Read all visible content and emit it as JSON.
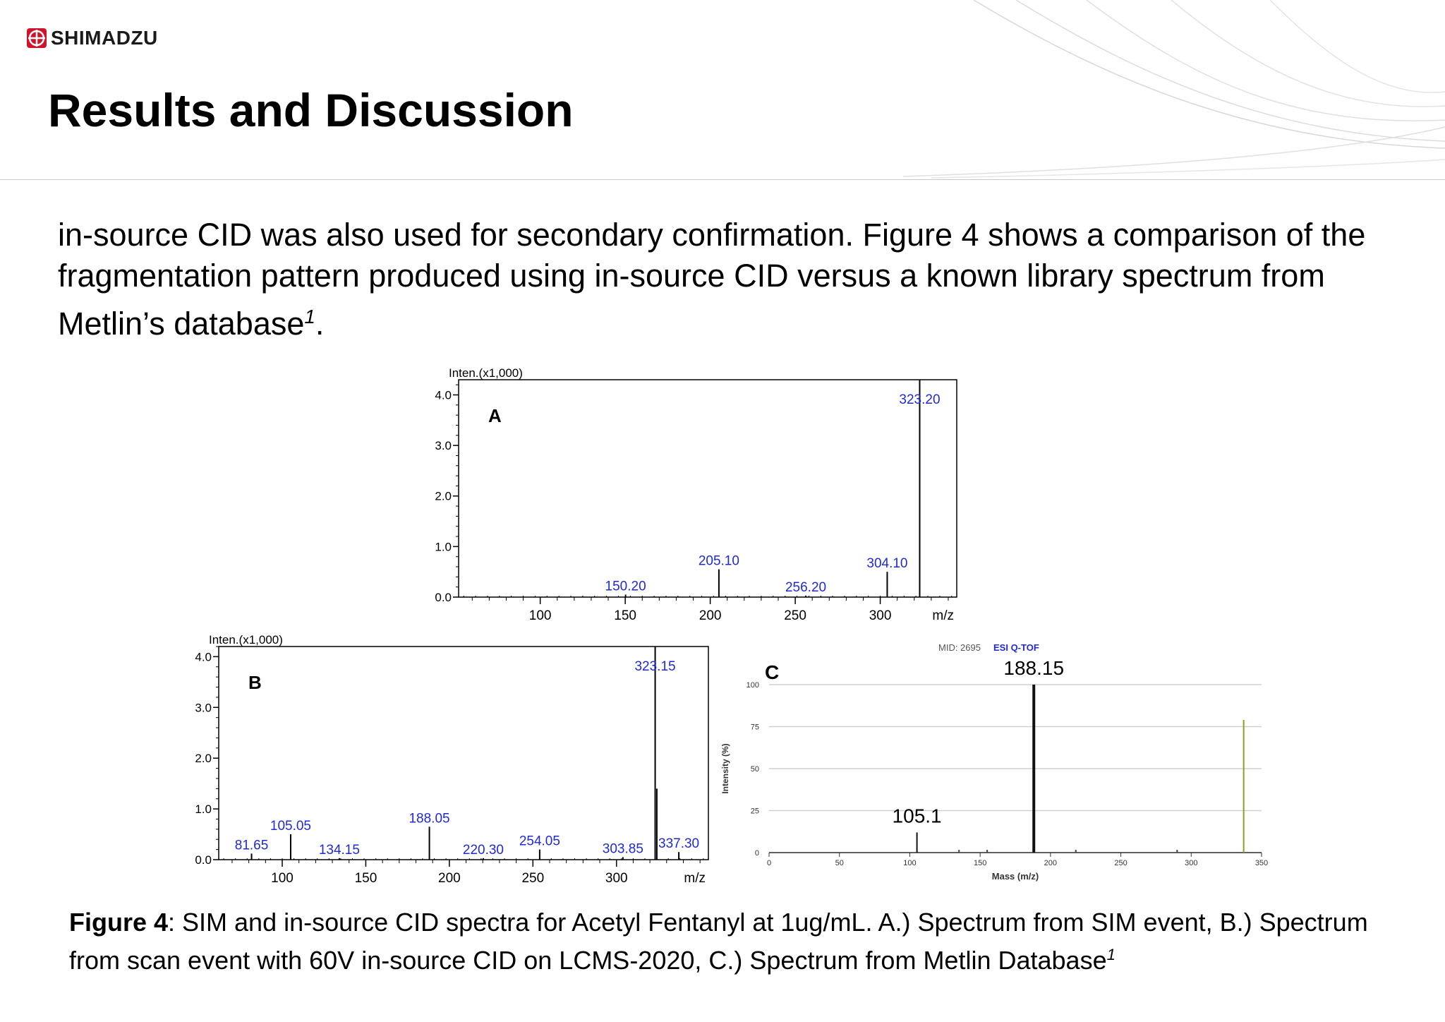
{
  "header": {
    "brand": "SHIMADZU",
    "title": "Results and Discussion"
  },
  "body": {
    "paragraph": "in-source CID was also used for secondary confirmation. Figure 4 shows a comparison of the fragmentation pattern produced using in-source CID versus a known library spectrum from Metlin’s database",
    "footnote_mark": "1",
    "end": "."
  },
  "caption": {
    "label": "Figure 4",
    "text": ": SIM and in-source CID spectra for Acetyl Fentanyl at 1ug/mL.  A.) Spectrum from SIM event, B.) Spectrum from scan event with 60V in-source CID on LCMS-2020, C.) Spectrum from Metlin Database",
    "footnote_mark": "1"
  },
  "colors": {
    "brand_red": "#d0122a",
    "peak_label": "#1f2ad6",
    "axis": "#000000",
    "metlin_peak": "#8aa020"
  },
  "chart_data": [
    {
      "type": "bar",
      "panel": "A",
      "ylabel": "Inten.(x1,000)",
      "xlabel": "m/z",
      "xlim": [
        52,
        345
      ],
      "ylim": [
        0,
        4.3
      ],
      "xticks": [
        100,
        150,
        200,
        250,
        300
      ],
      "yticks": [
        0,
        1,
        2,
        3,
        4
      ],
      "ytick_labels": [
        "0.0",
        "1.0",
        "2.0",
        "3.0",
        "4.0"
      ],
      "peaks": [
        {
          "x": 150.2,
          "y": 0.05,
          "label": "150.20"
        },
        {
          "x": 205.1,
          "y": 0.55,
          "label": "205.10"
        },
        {
          "x": 256.2,
          "y": 0.03,
          "label": "256.20"
        },
        {
          "x": 304.1,
          "y": 0.5,
          "label": "304.10"
        },
        {
          "x": 323.2,
          "y": 4.3,
          "label": "323.20"
        }
      ]
    },
    {
      "type": "bar",
      "panel": "B",
      "ylabel": "Inten.(x1,000)",
      "xlabel": "m/z",
      "xlim": [
        62,
        355
      ],
      "ylim": [
        0,
        4.2
      ],
      "xticks": [
        100,
        150,
        200,
        250,
        300
      ],
      "yticks": [
        0,
        1,
        2,
        3,
        4
      ],
      "ytick_labels": [
        "0.0",
        "1.0",
        "2.0",
        "3.0",
        "4.0"
      ],
      "peaks": [
        {
          "x": 81.65,
          "y": 0.12,
          "label": "81.65"
        },
        {
          "x": 105.05,
          "y": 0.5,
          "label": "105.05"
        },
        {
          "x": 134.15,
          "y": 0.03,
          "label": "134.15"
        },
        {
          "x": 188.05,
          "y": 0.65,
          "label": "188.05"
        },
        {
          "x": 220.3,
          "y": 0.03,
          "label": "220.30"
        },
        {
          "x": 254.05,
          "y": 0.2,
          "label": "254.05"
        },
        {
          "x": 303.85,
          "y": 0.05,
          "label": "303.85"
        },
        {
          "x": 323.15,
          "y": 4.2,
          "label": "323.15"
        },
        {
          "x": 324.15,
          "y": 1.4,
          "label": ""
        },
        {
          "x": 337.3,
          "y": 0.15,
          "label": "337.30"
        }
      ]
    },
    {
      "type": "bar",
      "panel": "C",
      "header_left": "MID: 2695",
      "header_right": "ESI Q-TOF",
      "ylabel": "Intensity (%)",
      "xlabel": "Mass (m/z)",
      "xlim": [
        0,
        350
      ],
      "ylim": [
        0,
        100
      ],
      "xticks": [
        0,
        50,
        100,
        150,
        200,
        250,
        300,
        350
      ],
      "yticks": [
        0,
        25,
        50,
        75,
        100
      ],
      "peaks": [
        {
          "x": 105.1,
          "y": 12,
          "label": "105.1"
        },
        {
          "x": 188.15,
          "y": 100,
          "label": "188.15"
        },
        {
          "x": 337.3,
          "y": 79,
          "label": ""
        }
      ]
    }
  ]
}
